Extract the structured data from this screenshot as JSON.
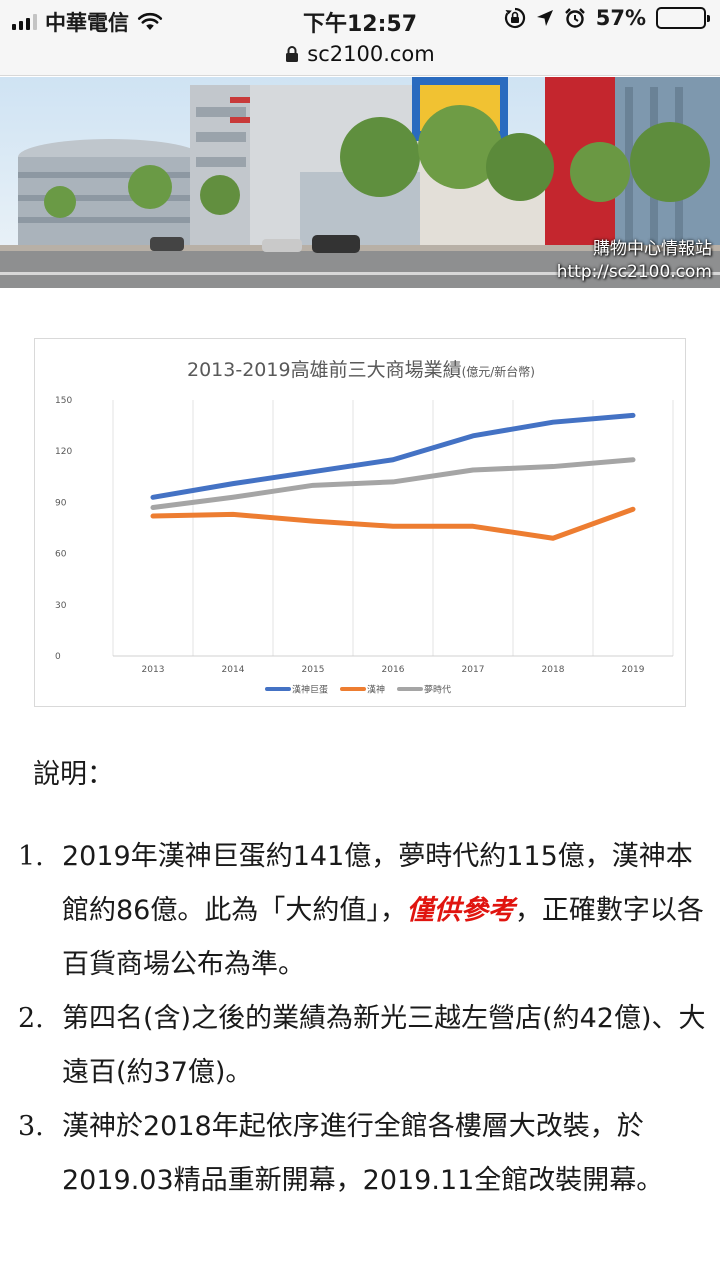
{
  "status_bar": {
    "carrier": "中華電信",
    "time": "下午12:57",
    "battery": "57%",
    "battery_level": 0.57,
    "icons": [
      "signal-icon",
      "wifi-icon",
      "orientation-lock-icon",
      "location-icon",
      "alarm-icon",
      "battery-icon"
    ]
  },
  "browser": {
    "url": "sc2100.com",
    "lock_icon": "lock-icon"
  },
  "hero": {
    "caption_line1": "購物中心情報站",
    "caption_line2": "http://sc2100.com"
  },
  "chart_data": {
    "type": "line",
    "title": "2013-2019高雄前三大商場業績",
    "title_unit": "(億元/新台幣)",
    "categories": [
      "2013",
      "2014",
      "2015",
      "2016",
      "2017",
      "2018",
      "2019"
    ],
    "ylim": [
      0,
      150
    ],
    "yticks": [
      "0",
      "30",
      "60",
      "90",
      "120",
      "150"
    ],
    "grid": "vertical",
    "legend": "bottom",
    "series": [
      {
        "name": "漢神巨蛋",
        "color": "#4472c4",
        "values": [
          93,
          101,
          108,
          115,
          129,
          137,
          141
        ]
      },
      {
        "name": "漢神",
        "color": "#ed7d31",
        "values": [
          82,
          83,
          79,
          76,
          76,
          69,
          86
        ]
      },
      {
        "name": "夢時代",
        "color": "#a5a5a5",
        "values": [
          87,
          93,
          100,
          102,
          109,
          111,
          115
        ]
      }
    ]
  },
  "description": {
    "heading": "說明：",
    "notes": [
      {
        "num": "1.",
        "text_a": "2019年漢神巨蛋約141億，夢時代約115億，漢神本館約86億。此為「大約值」，",
        "emphasis": "僅供參考",
        "text_b": "，正確數字以各百貨商場公布為準。"
      },
      {
        "num": "2.",
        "text_a": "第四名(含)之後的業績為新光三越左營店(約42億)、大遠百(約37億)。",
        "emphasis": "",
        "text_b": ""
      },
      {
        "num": "3.",
        "text_a": "漢神於2018年起依序進行全館各樓層大改裝，於2019.03精品重新開幕，2019.11全館改裝開幕。",
        "emphasis": "",
        "text_b": ""
      }
    ]
  }
}
